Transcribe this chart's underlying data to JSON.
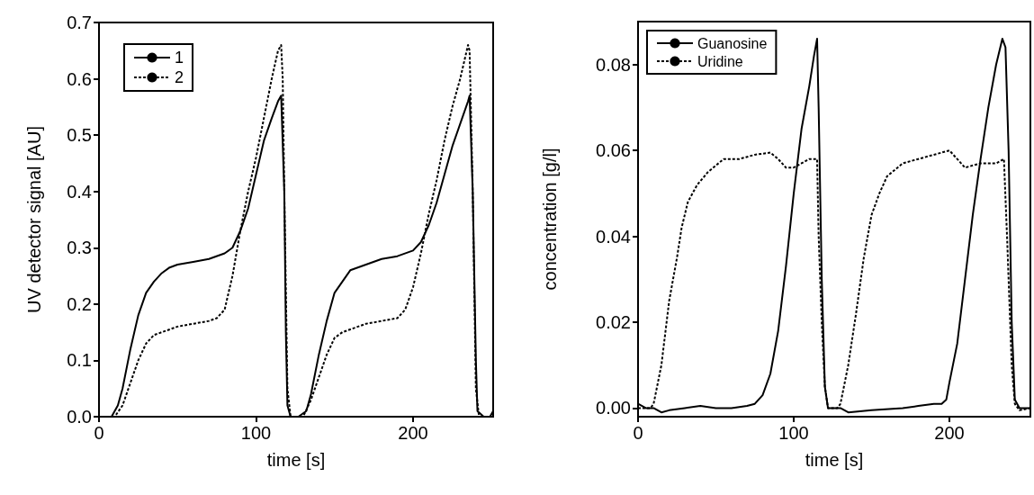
{
  "chart_data": [
    {
      "type": "line",
      "xlabel": "time [s]",
      "ylabel": "UV detector signal [AU]",
      "xlim": [
        0,
        251
      ],
      "ylim": [
        0,
        0.7
      ],
      "xticks": [
        0,
        100,
        200
      ],
      "yticks": [
        {
          "value": 0,
          "label": "0.0"
        },
        0.1,
        0.2,
        0.3,
        0.4,
        0.5,
        0.6,
        0.7
      ],
      "grid": false,
      "legend": "top left",
      "marker": "none",
      "series": [
        {
          "name": "1",
          "color": "#000000",
          "line_style": "solid",
          "x": [
            0,
            8,
            12,
            15,
            20,
            25,
            30,
            35,
            40,
            45,
            50,
            60,
            70,
            80,
            85,
            90,
            95,
            100,
            105,
            110,
            114,
            116,
            118,
            119,
            120,
            122,
            127,
            132,
            135,
            140,
            145,
            150,
            155,
            160,
            170,
            180,
            190,
            200,
            205,
            210,
            215,
            220,
            225,
            230,
            235,
            236,
            238,
            240,
            241,
            245,
            249,
            251
          ],
          "values": [
            0,
            0,
            0.02,
            0.05,
            0.12,
            0.18,
            0.22,
            0.24,
            0.255,
            0.265,
            0.27,
            0.275,
            0.28,
            0.29,
            0.3,
            0.33,
            0.37,
            0.43,
            0.49,
            0.53,
            0.56,
            0.57,
            0.4,
            0.15,
            0.02,
            0,
            0,
            0.01,
            0.04,
            0.11,
            0.17,
            0.22,
            0.24,
            0.26,
            0.27,
            0.28,
            0.285,
            0.295,
            0.31,
            0.34,
            0.38,
            0.43,
            0.48,
            0.52,
            0.56,
            0.57,
            0.4,
            0.1,
            0.01,
            0,
            0,
            0.01
          ]
        },
        {
          "name": "2",
          "color": "#000000",
          "line_style": "dotted",
          "x": [
            0,
            10,
            15,
            20,
            25,
            30,
            35,
            40,
            50,
            60,
            70,
            75,
            80,
            85,
            90,
            95,
            100,
            105,
            110,
            114,
            116,
            117,
            118,
            120,
            122,
            130,
            135,
            140,
            145,
            150,
            155,
            160,
            170,
            180,
            190,
            195,
            200,
            205,
            210,
            215,
            220,
            225,
            230,
            235,
            236,
            238,
            240,
            242,
            251
          ],
          "values": [
            0,
            0,
            0.02,
            0.06,
            0.1,
            0.13,
            0.145,
            0.15,
            0.16,
            0.165,
            0.17,
            0.175,
            0.19,
            0.25,
            0.33,
            0.4,
            0.46,
            0.53,
            0.6,
            0.65,
            0.66,
            0.6,
            0.4,
            0.05,
            0,
            0,
            0.03,
            0.07,
            0.11,
            0.14,
            0.15,
            0.155,
            0.165,
            0.17,
            0.175,
            0.19,
            0.23,
            0.29,
            0.36,
            0.42,
            0.49,
            0.55,
            0.6,
            0.66,
            0.65,
            0.4,
            0.05,
            0,
            0
          ]
        }
      ]
    },
    {
      "type": "line",
      "xlabel": "time [s]",
      "ylabel": "concentration [g/l]",
      "xlim": [
        0,
        252
      ],
      "ylim": [
        -0.002,
        0.09
      ],
      "xticks": [
        0,
        100,
        200
      ],
      "yticks": [
        {
          "value": 0,
          "label": "0.00"
        },
        0.02,
        0.04,
        0.06,
        0.08
      ],
      "grid": false,
      "legend": "top left",
      "marker": "none",
      "series": [
        {
          "name": "Guanosine",
          "color": "#000000",
          "line_style": "solid",
          "x": [
            0,
            5,
            10,
            15,
            20,
            30,
            40,
            50,
            60,
            70,
            75,
            80,
            85,
            90,
            95,
            100,
            105,
            110,
            113,
            115,
            116,
            118,
            120,
            122,
            130,
            135,
            150,
            170,
            180,
            190,
            195,
            198,
            200,
            205,
            210,
            215,
            220,
            225,
            230,
            234,
            236,
            238,
            240,
            242,
            245,
            252
          ],
          "values": [
            0.001,
            0,
            0,
            -0.001,
            -0.0005,
            0,
            0.0005,
            0,
            0,
            0.0005,
            0.001,
            0.003,
            0.008,
            0.018,
            0.033,
            0.05,
            0.065,
            0.075,
            0.082,
            0.086,
            0.07,
            0.03,
            0.005,
            0,
            0,
            -0.001,
            -0.0005,
            0,
            0.0005,
            0.001,
            0.001,
            0.002,
            0.006,
            0.015,
            0.03,
            0.045,
            0.058,
            0.07,
            0.08,
            0.086,
            0.084,
            0.06,
            0.02,
            0.002,
            0,
            0
          ]
        },
        {
          "name": "Uridine",
          "color": "#000000",
          "line_style": "dotted",
          "x": [
            0,
            8,
            10,
            15,
            20,
            25,
            28,
            32,
            38,
            45,
            55,
            65,
            75,
            85,
            90,
            95,
            100,
            105,
            110,
            115,
            116,
            118,
            120,
            122,
            128,
            130,
            135,
            140,
            145,
            150,
            155,
            160,
            170,
            180,
            190,
            200,
            205,
            210,
            220,
            230,
            235,
            237,
            240,
            242,
            245,
            252
          ],
          "values": [
            0,
            0,
            0.001,
            0.01,
            0.025,
            0.035,
            0.042,
            0.048,
            0.052,
            0.055,
            0.058,
            0.058,
            0.059,
            0.0595,
            0.058,
            0.056,
            0.056,
            0.057,
            0.058,
            0.058,
            0.04,
            0.02,
            0.005,
            0,
            0,
            0.001,
            0.01,
            0.022,
            0.035,
            0.045,
            0.05,
            0.054,
            0.057,
            0.058,
            0.059,
            0.06,
            0.058,
            0.056,
            0.057,
            0.057,
            0.058,
            0.04,
            0.01,
            0.001,
            -0.0005,
            0
          ]
        }
      ]
    }
  ]
}
